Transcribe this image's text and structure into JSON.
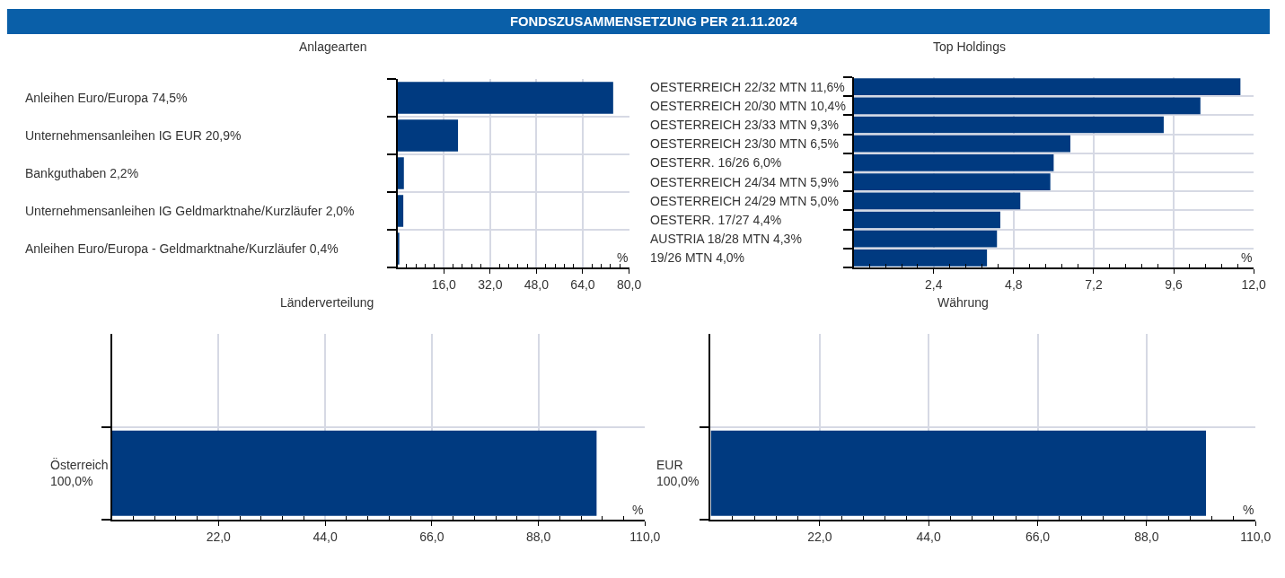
{
  "chart_data": [
    {
      "type": "other",
      "title": "FONDSZUSAMMENSETZUNG PER 21.11.2024"
    },
    {
      "type": "bar",
      "orientation": "horizontal",
      "title": "Anlagearten",
      "xlabel": "%",
      "categories": [
        "Anleihen Euro/Europa 74,5%",
        "Unternehmensanleihen IG EUR 20,9%",
        "Bankguthaben 2,2%",
        "Unternehmensanleihen IG Geldmarktnahe/Kurzläufer 2,0%",
        "Anleihen Euro/Europa - Geldmarktnahe/Kurzläufer 0,4%"
      ],
      "values": [
        74.5,
        20.9,
        2.2,
        2.0,
        0.4
      ],
      "color": "#003a80",
      "xlim": [
        0,
        80
      ],
      "xticks": [
        {
          "value": 3.2,
          "label": null
        },
        {
          "value": 6.4,
          "label": null
        },
        {
          "value": 9.6,
          "label": null
        },
        {
          "value": 12.8,
          "label": null
        },
        {
          "value": 16,
          "label": "16,0"
        },
        {
          "value": 19.2,
          "label": null
        },
        {
          "value": 22.4,
          "label": null
        },
        {
          "value": 25.6,
          "label": null
        },
        {
          "value": 28.8,
          "label": null
        },
        {
          "value": 32,
          "label": "32,0"
        },
        {
          "value": 35.2,
          "label": null
        },
        {
          "value": 38.4,
          "label": null
        },
        {
          "value": 41.6,
          "label": null
        },
        {
          "value": 44.8,
          "label": null
        },
        {
          "value": 48,
          "label": "48,0"
        },
        {
          "value": 51.2,
          "label": null
        },
        {
          "value": 54.4,
          "label": null
        },
        {
          "value": 57.6,
          "label": null
        },
        {
          "value": 60.8,
          "label": null
        },
        {
          "value": 64,
          "label": "64,0"
        },
        {
          "value": 67.2,
          "label": null
        },
        {
          "value": 70.4,
          "label": null
        },
        {
          "value": 73.6,
          "label": null
        },
        {
          "value": 76.8,
          "label": null
        },
        {
          "value": 80,
          "label": "80,0"
        }
      ],
      "grid": true
    },
    {
      "type": "bar",
      "orientation": "horizontal",
      "title": "Top Holdings",
      "xlabel": "%",
      "categories": [
        "OESTERREICH 22/32 MTN 11,6%",
        "OESTERREICH 20/30 MTN 10,4%",
        "OESTERREICH 23/33 MTN 9,3%",
        "OESTERREICH 23/30 MTN 6,5%",
        "OESTERR. 16/26 6,0%",
        "OESTERREICH 24/34 MTN 5,9%",
        "OESTERREICH 24/29 MTN 5,0%",
        "OESTERR. 17/27 4,4%",
        "AUSTRIA 18/28 MTN 4,3%",
        "19/26 MTN 4,0%"
      ],
      "values": [
        11.6,
        10.4,
        9.3,
        6.5,
        6.0,
        5.9,
        5.0,
        4.4,
        4.3,
        4.0
      ],
      "color": "#003a80",
      "xlim": [
        0,
        12
      ],
      "xticks": [
        {
          "value": 0.48,
          "label": null
        },
        {
          "value": 0.96,
          "label": null
        },
        {
          "value": 1.44,
          "label": null
        },
        {
          "value": 1.92,
          "label": null
        },
        {
          "value": 2.4,
          "label": "2,4"
        },
        {
          "value": 2.88,
          "label": null
        },
        {
          "value": 3.36,
          "label": null
        },
        {
          "value": 3.84,
          "label": null
        },
        {
          "value": 4.32,
          "label": null
        },
        {
          "value": 4.8,
          "label": "4,8"
        },
        {
          "value": 5.28,
          "label": null
        },
        {
          "value": 5.76,
          "label": null
        },
        {
          "value": 6.24,
          "label": null
        },
        {
          "value": 6.72,
          "label": null
        },
        {
          "value": 7.2,
          "label": "7,2"
        },
        {
          "value": 7.68,
          "label": null
        },
        {
          "value": 8.16,
          "label": null
        },
        {
          "value": 8.64,
          "label": null
        },
        {
          "value": 9.12,
          "label": null
        },
        {
          "value": 9.6,
          "label": "9,6"
        },
        {
          "value": 10.08,
          "label": null
        },
        {
          "value": 10.56,
          "label": null
        },
        {
          "value": 11.04,
          "label": null
        },
        {
          "value": 11.52,
          "label": null
        },
        {
          "value": 12,
          "label": "12,0"
        }
      ],
      "grid": true
    },
    {
      "type": "bar",
      "orientation": "horizontal",
      "title": "Länderverteilung",
      "xlabel": "%",
      "categories": [
        null,
        "Österreich\n100,0%"
      ],
      "values": [
        null,
        100
      ],
      "color": "#003a80",
      "xlim": [
        0,
        110
      ],
      "xticks": [
        {
          "value": 4.4,
          "label": null
        },
        {
          "value": 8.8,
          "label": null
        },
        {
          "value": 13.2,
          "label": null
        },
        {
          "value": 17.6,
          "label": null
        },
        {
          "value": 22,
          "label": "22,0"
        },
        {
          "value": 26.4,
          "label": null
        },
        {
          "value": 30.8,
          "label": null
        },
        {
          "value": 35.2,
          "label": null
        },
        {
          "value": 39.6,
          "label": null
        },
        {
          "value": 44,
          "label": "44,0"
        },
        {
          "value": 48.4,
          "label": null
        },
        {
          "value": 52.8,
          "label": null
        },
        {
          "value": 57.2,
          "label": null
        },
        {
          "value": 61.6,
          "label": null
        },
        {
          "value": 66,
          "label": "66,0"
        },
        {
          "value": 70.4,
          "label": null
        },
        {
          "value": 74.8,
          "label": null
        },
        {
          "value": 79.2,
          "label": null
        },
        {
          "value": 83.6,
          "label": null
        },
        {
          "value": 88,
          "label": "88,0"
        },
        {
          "value": 92.4,
          "label": null
        },
        {
          "value": 96.8,
          "label": null
        },
        {
          "value": 101.2,
          "label": null
        },
        {
          "value": 105.6,
          "label": null
        },
        {
          "value": 110,
          "label": "110,0"
        }
      ],
      "grid": true
    },
    {
      "type": "bar",
      "orientation": "horizontal",
      "title": "Währung",
      "xlabel": "%",
      "categories": [
        null,
        "EUR\n100,0%"
      ],
      "values": [
        null,
        100
      ],
      "color": "#003a80",
      "xlim": [
        0,
        110
      ],
      "xticks": [
        {
          "value": 4.4,
          "label": null
        },
        {
          "value": 8.8,
          "label": null
        },
        {
          "value": 13.2,
          "label": null
        },
        {
          "value": 17.6,
          "label": null
        },
        {
          "value": 22,
          "label": "22,0"
        },
        {
          "value": 26.4,
          "label": null
        },
        {
          "value": 30.8,
          "label": null
        },
        {
          "value": 35.2,
          "label": null
        },
        {
          "value": 39.6,
          "label": null
        },
        {
          "value": 44,
          "label": "44,0"
        },
        {
          "value": 48.4,
          "label": null
        },
        {
          "value": 52.8,
          "label": null
        },
        {
          "value": 57.2,
          "label": null
        },
        {
          "value": 61.6,
          "label": null
        },
        {
          "value": 66,
          "label": "66,0"
        },
        {
          "value": 70.4,
          "label": null
        },
        {
          "value": 74.8,
          "label": null
        },
        {
          "value": 79.2,
          "label": null
        },
        {
          "value": 83.6,
          "label": null
        },
        {
          "value": 88,
          "label": "88,0"
        },
        {
          "value": 92.4,
          "label": null
        },
        {
          "value": 96.8,
          "label": null
        },
        {
          "value": 101.2,
          "label": null
        },
        {
          "value": 105.6,
          "label": null
        },
        {
          "value": 110,
          "label": "110,0"
        }
      ],
      "grid": true
    }
  ]
}
